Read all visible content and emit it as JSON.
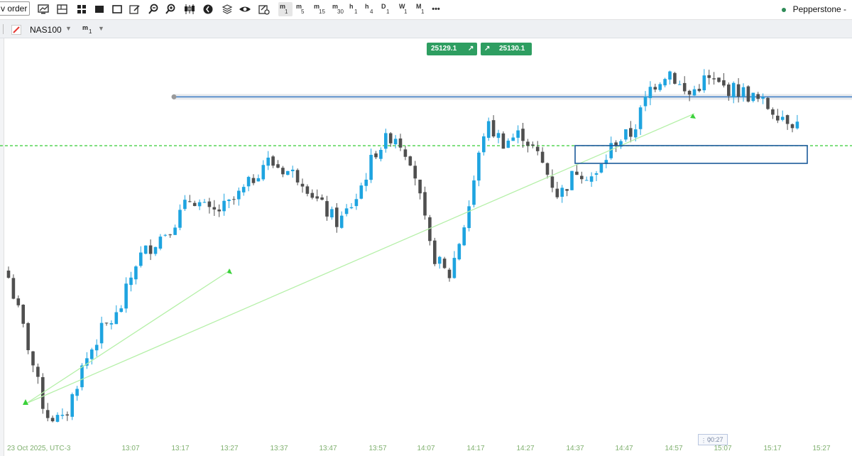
{
  "toolbar": {
    "new_order_label": "v order",
    "timeframes": [
      {
        "unit": "m",
        "num": "1",
        "active": true
      },
      {
        "unit": "m",
        "num": "5"
      },
      {
        "unit": "m",
        "num": "15"
      },
      {
        "unit": "m",
        "num": "30"
      },
      {
        "unit": "h",
        "num": "1"
      },
      {
        "unit": "h",
        "num": "4"
      },
      {
        "unit": "D",
        "num": "1"
      },
      {
        "unit": "W",
        "num": "1"
      },
      {
        "unit": "M",
        "num": "1"
      }
    ],
    "more_label": "•••",
    "broker": "Pepperstone -",
    "icons": [
      "chart-settings-icon",
      "layout-icon",
      "multi-chart-icon",
      "single-chart-icon",
      "edit-icon",
      "zoom-out-icon",
      "zoom-in-icon",
      "candles-icon",
      "rewind-icon",
      "layers-icon",
      "eye-icon",
      "tools-icon"
    ]
  },
  "symbol_bar": {
    "symbol": "NAS100",
    "timeframe_unit": "m",
    "timeframe_num": "1"
  },
  "price_boxes": {
    "sell": "25129.1",
    "buy": "25130.1"
  },
  "timer": "00:27",
  "colors": {
    "bull": "#1ea4e0",
    "bear": "#4f4f4f",
    "hline": "#3b7bc4",
    "dashed": "#33cc33",
    "trendline": "#b5f0a8",
    "box": "#1b5a9a"
  },
  "chart_data": {
    "type": "candlestick",
    "symbol": "NAS100",
    "timeframe": "m1",
    "x_tick_labels": [
      "23 Oct 2025, UTC-3",
      "13:07",
      "13:17",
      "13:27",
      "13:37",
      "13:47",
      "13:57",
      "14:07",
      "14:17",
      "14:27",
      "14:37",
      "14:47",
      "14:57",
      "15:07",
      "15:17",
      "15:27"
    ],
    "y_range_approx": [
      24995,
      25215
    ],
    "bullish_color": "#1ea4e0",
    "bearish_color": "#4f4f4f",
    "price_path_approx": [
      25085,
      25050,
      25010,
      25005,
      25035,
      25055,
      25065,
      25095,
      25105,
      25115,
      25130,
      25120,
      25125,
      25135,
      25150,
      25145,
      25140,
      25125,
      25115,
      25130,
      25155,
      25165,
      25150,
      25100,
      25085,
      25120,
      25170,
      25160,
      25165,
      25150,
      25130,
      25145,
      25140,
      25160,
      25165,
      25190,
      25200,
      25185,
      25195,
      25190,
      25188,
      25182,
      25176,
      25170
    ],
    "horizontal_line_approx": 25185,
    "dashed_level_approx": 25158,
    "box_range_approx": [
      25172,
      25179
    ]
  }
}
